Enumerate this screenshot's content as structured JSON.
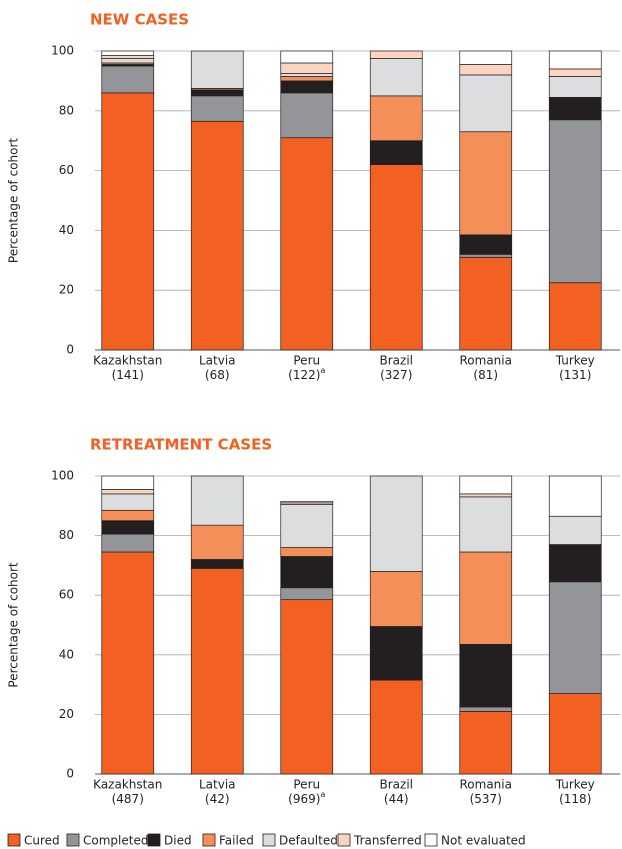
{
  "chart_data": [
    {
      "type": "stacked_bar",
      "title": "NEW CASES",
      "y_label": "Percentage of cohort",
      "categories": [
        "Kazakhstan",
        "Latvia",
        "Peru",
        "Brazil",
        "Romania",
        "Turkey"
      ],
      "category_counts": [
        "(141)",
        "(68)",
        "(122)",
        "(327)",
        "(81)",
        "(131)"
      ],
      "category_notes": [
        null,
        null,
        "a",
        null,
        null,
        null
      ],
      "ylim": [
        0,
        100
      ],
      "yticks": [
        0,
        20,
        40,
        60,
        80,
        100
      ],
      "grid": true,
      "series": [
        {
          "name": "Cured",
          "color": "#f26122",
          "values": [
            86,
            76.5,
            71,
            62,
            31,
            22.5
          ]
        },
        {
          "name": "Completed",
          "color": "#939598",
          "values": [
            9,
            8.5,
            15,
            0,
            1,
            54.5
          ]
        },
        {
          "name": "Died",
          "color": "#231f20",
          "values": [
            0.5,
            2,
            4,
            8,
            6.5,
            7.5
          ]
        },
        {
          "name": "Failed",
          "color": "#f58f59",
          "values": [
            0.5,
            0.5,
            1.5,
            15,
            34.5,
            0
          ]
        },
        {
          "name": "Defaulted",
          "color": "#dcddde",
          "values": [
            1.5,
            12.5,
            1,
            12.5,
            19,
            7
          ]
        },
        {
          "name": "Transferred",
          "color": "#fcd5c0",
          "values": [
            1,
            0,
            3.5,
            2.5,
            3.5,
            2.5
          ]
        },
        {
          "name": "Not evaluated",
          "color": "#ffffff",
          "values": [
            1.5,
            0,
            4,
            0,
            4.5,
            6
          ]
        }
      ]
    },
    {
      "type": "stacked_bar",
      "title": "RETREATMENT CASES",
      "y_label": "Percentage of cohort",
      "categories": [
        "Kazakhstan",
        "Latvia",
        "Peru",
        "Brazil",
        "Romania",
        "Turkey"
      ],
      "category_counts": [
        "(487)",
        "(42)",
        "(969)",
        "(44)",
        "(537)",
        "(118)"
      ],
      "category_notes": [
        null,
        null,
        "a",
        null,
        null,
        null
      ],
      "ylim": [
        0,
        100
      ],
      "yticks": [
        0,
        20,
        40,
        60,
        80,
        100
      ],
      "grid": true,
      "series": [
        {
          "name": "Cured",
          "color": "#f26122",
          "values": [
            74.5,
            69,
            58.5,
            31.5,
            21,
            27
          ]
        },
        {
          "name": "Completed",
          "color": "#939598",
          "values": [
            6,
            0,
            4,
            0,
            1.5,
            37.5
          ]
        },
        {
          "name": "Died",
          "color": "#231f20",
          "values": [
            4.5,
            3,
            10.5,
            18,
            21,
            12.5
          ]
        },
        {
          "name": "Failed",
          "color": "#f58f59",
          "values": [
            3.5,
            11.5,
            3,
            18.5,
            31,
            0
          ]
        },
        {
          "name": "Defaulted",
          "color": "#dcddde",
          "values": [
            5.5,
            16.5,
            14.5,
            32,
            18.5,
            9.5
          ]
        },
        {
          "name": "Transferred",
          "color": "#fcd5c0",
          "values": [
            1.5,
            0,
            0.5,
            0,
            1,
            0
          ]
        },
        {
          "name": "Not evaluated",
          "color": "#ffffff",
          "values": [
            4.5,
            0,
            0.5,
            0,
            6,
            13.5
          ]
        }
      ]
    }
  ]
}
